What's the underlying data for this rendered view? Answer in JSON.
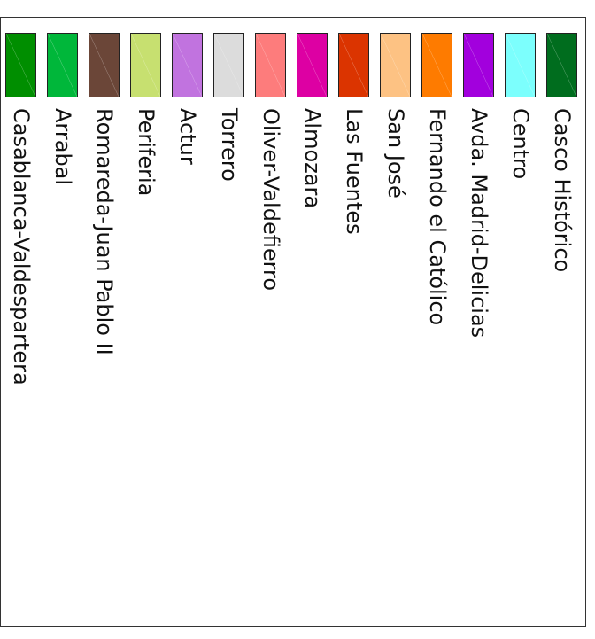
{
  "legend": {
    "items": [
      {
        "label": "Casablanca-Valdespartera",
        "color": "#008e00"
      },
      {
        "label": "Arrabal",
        "color": "#00b73a"
      },
      {
        "label": "Romareda-Juan Pablo II",
        "color": "#6b4638"
      },
      {
        "label": "Periferia",
        "color": "#c7e070"
      },
      {
        "label": "Actur",
        "color": "#c173df"
      },
      {
        "label": "Torrero",
        "color": "#dcdcdc"
      },
      {
        "label": "Oliver-Valdefierro",
        "color": "#fd7c7c"
      },
      {
        "label": "Almozara",
        "color": "#dd00a3"
      },
      {
        "label": "Las Fuentes",
        "color": "#db3400"
      },
      {
        "label": "San José",
        "color": "#fdc283"
      },
      {
        "label": "Fernando el Católico",
        "color": "#fe7b00"
      },
      {
        "label": "Avda. Madrid-Delicias",
        "color": "#a200dd"
      },
      {
        "label": "Centro",
        "color": "#7cfffd"
      },
      {
        "label": "Casco Histórico",
        "color": "#006d1e"
      }
    ]
  }
}
